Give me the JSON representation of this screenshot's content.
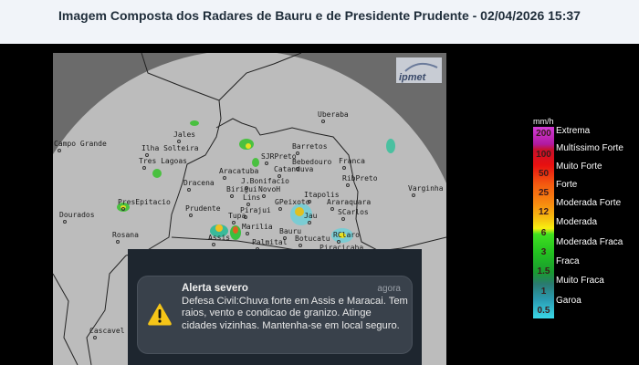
{
  "header": {
    "title": "Imagem Composta dos Radares de Bauru e de Presidente Prudente - 02/04/2026 15:37"
  },
  "map": {
    "logo": "ipmet",
    "cities": [
      "Uberaba",
      "Jales",
      "Barretos",
      "SJRPreto",
      "Bebedouro",
      "Franca",
      "Catanduva",
      "Aracatuba",
      "J.Bonifacio",
      "RibPreto",
      "Dracena",
      "Varginha",
      "Birigui",
      "NovoH",
      "Itapolis",
      "Lins",
      "GPeixoto",
      "Araraquara",
      "PresEpitacio",
      "Prudente",
      "Pirajui",
      "SCarlos",
      "Dourados",
      "Tupa",
      "Jau",
      "Marilia",
      "Bauru",
      "Rosana",
      "RClaro",
      "Assis",
      "Botucatu",
      "Palmital",
      "Piracicaba",
      "Campo Grande",
      "Ilha Solteira",
      "Tres Lagoas",
      "Cascavel"
    ]
  },
  "legend": {
    "unit": "mm/h",
    "values": [
      "200",
      "100",
      "50",
      "25",
      "12",
      "6",
      "3",
      "1.5",
      "1",
      "0.5"
    ],
    "labels": [
      "Extrema",
      "Multíssimo Forte",
      "Muito Forte",
      "Forte",
      "Moderada Forte",
      "Moderada",
      "Moderada Fraca",
      "Fraca",
      "Muito Fraca",
      "Garoa"
    ]
  },
  "notification": {
    "icon": "warning-triangle-icon",
    "title": "Alerta severo",
    "time": "agora",
    "body": "Defesa Civil:Chuva forte em Assis e Maracai. Tem raios, vento e condicao de granizo. Atinge cidades vizinhas. Mantenha-se em local seguro."
  }
}
